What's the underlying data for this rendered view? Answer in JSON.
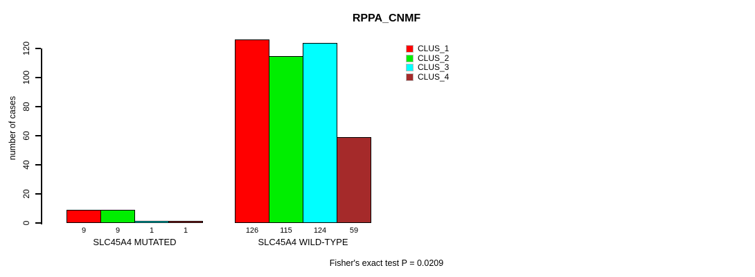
{
  "chart_data": {
    "type": "bar",
    "title": "RPPA_CNMF",
    "ylabel": "number of cases",
    "xlabel": "",
    "ylim": [
      0,
      120
    ],
    "yticks": [
      0,
      20,
      40,
      60,
      80,
      100,
      120
    ],
    "grid": false,
    "legend_position": "top-right",
    "categories": [
      "SLC45A4 MUTATED",
      "SLC45A4 WILD-TYPE"
    ],
    "series": [
      {
        "name": "CLUS_1",
        "color": "#ff0000",
        "values": [
          9,
          126
        ]
      },
      {
        "name": "CLUS_2",
        "color": "#00ee00",
        "values": [
          9,
          115
        ]
      },
      {
        "name": "CLUS_3",
        "color": "#00ffff",
        "values": [
          1,
          124
        ]
      },
      {
        "name": "CLUS_4",
        "color": "#a52a2a",
        "values": [
          1,
          59
        ]
      }
    ],
    "bar_labels": [
      [
        "9",
        "9",
        "1",
        "1"
      ],
      [
        "126",
        "115",
        "124",
        "59"
      ]
    ],
    "annotation": "Fisher's exact test P = 0.0209"
  }
}
